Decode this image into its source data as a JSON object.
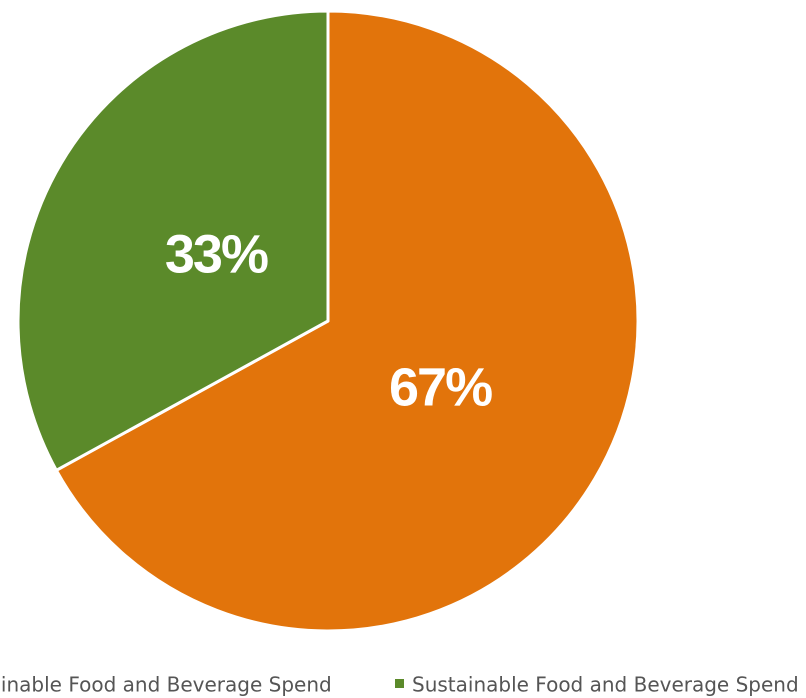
{
  "chart_data": {
    "type": "pie",
    "start_angle_deg": 0,
    "direction": "clockwise",
    "series": [
      {
        "name": "Unsustainable Food and Beverage Spend",
        "value": 67,
        "label": "67%",
        "color": "#E2740B"
      },
      {
        "name": "Sustainable Food and Beverage Spend",
        "value": 33,
        "label": "33%",
        "color": "#5B8A2A"
      }
    ],
    "legend": {
      "placement": "bottom",
      "entries": [
        "Unsustainable Food and Beverage Spend",
        "Sustainable Food and Beverage Spend"
      ]
    }
  }
}
